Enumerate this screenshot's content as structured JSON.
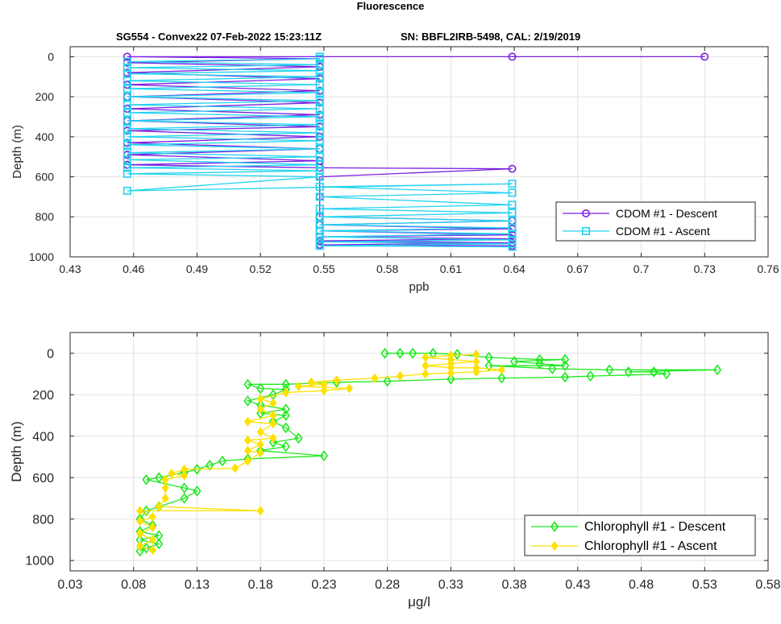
{
  "figure": {
    "title": "Fluorescence",
    "subtitle_left": "SG554 - Convex22 07-Feb-2022 15:23:11Z",
    "subtitle_right": "SN: BBFL2IRB-5498, CAL: 2/19/2019"
  },
  "chart_data": [
    {
      "type": "line",
      "xlabel": "ppb",
      "ylabel": "Depth (m)",
      "xlim": [
        0.43,
        0.76
      ],
      "ylim": [
        1000,
        -50
      ],
      "y_reversed": true,
      "xticks": [
        "0.43",
        "0.46",
        "0.49",
        "0.52",
        "0.55",
        "0.58",
        "0.61",
        "0.64",
        "0.67",
        "0.7",
        "0.73",
        "0.76"
      ],
      "yticks": [
        "0",
        "200",
        "400",
        "600",
        "800",
        "1000"
      ],
      "grid": true,
      "legend_position": "bottom-right",
      "series": [
        {
          "name": "CDOM #1 - Descent",
          "color": "#7b1fe0",
          "marker": "circle",
          "points": [
            [
              0.73,
              0
            ],
            [
              0.639,
              0
            ],
            [
              0.457,
              0
            ],
            [
              0.548,
              10
            ],
            [
              0.457,
              30
            ],
            [
              0.548,
              50
            ],
            [
              0.457,
              80
            ],
            [
              0.548,
              110
            ],
            [
              0.457,
              140
            ],
            [
              0.548,
              170
            ],
            [
              0.457,
              200
            ],
            [
              0.548,
              230
            ],
            [
              0.457,
              260
            ],
            [
              0.548,
              290
            ],
            [
              0.457,
              320
            ],
            [
              0.548,
              350
            ],
            [
              0.457,
              370
            ],
            [
              0.548,
              400
            ],
            [
              0.457,
              430
            ],
            [
              0.548,
              460
            ],
            [
              0.457,
              490
            ],
            [
              0.548,
              520
            ],
            [
              0.457,
              540
            ],
            [
              0.548,
              555
            ],
            [
              0.639,
              560
            ],
            [
              0.548,
              600
            ],
            [
              0.548,
              700
            ],
            [
              0.548,
              800
            ],
            [
              0.639,
              820
            ],
            [
              0.548,
              840
            ],
            [
              0.639,
              860
            ],
            [
              0.548,
              870
            ],
            [
              0.639,
              890
            ],
            [
              0.548,
              900
            ],
            [
              0.639,
              910
            ],
            [
              0.548,
              920
            ],
            [
              0.639,
              930
            ],
            [
              0.548,
              940
            ],
            [
              0.639,
              945
            ]
          ]
        },
        {
          "name": "CDOM #1 - Ascent",
          "color": "#22d3f0",
          "marker": "square",
          "points": [
            [
              0.639,
              950
            ],
            [
              0.548,
              945
            ],
            [
              0.639,
              935
            ],
            [
              0.548,
              925
            ],
            [
              0.639,
              915
            ],
            [
              0.548,
              900
            ],
            [
              0.639,
              885
            ],
            [
              0.548,
              870
            ],
            [
              0.639,
              855
            ],
            [
              0.548,
              840
            ],
            [
              0.639,
              820
            ],
            [
              0.548,
              800
            ],
            [
              0.639,
              780
            ],
            [
              0.548,
              760
            ],
            [
              0.639,
              740
            ],
            [
              0.548,
              700
            ],
            [
              0.639,
              680
            ],
            [
              0.548,
              650
            ],
            [
              0.639,
              635
            ],
            [
              0.457,
              670
            ],
            [
              0.548,
              600
            ],
            [
              0.457,
              585
            ],
            [
              0.548,
              570
            ],
            [
              0.457,
              555
            ],
            [
              0.548,
              540
            ],
            [
              0.457,
              515
            ],
            [
              0.548,
              500
            ],
            [
              0.457,
              480
            ],
            [
              0.548,
              460
            ],
            [
              0.457,
              440
            ],
            [
              0.548,
              420
            ],
            [
              0.457,
              400
            ],
            [
              0.548,
              380
            ],
            [
              0.457,
              360
            ],
            [
              0.548,
              340
            ],
            [
              0.457,
              320
            ],
            [
              0.548,
              300
            ],
            [
              0.457,
              280
            ],
            [
              0.548,
              260
            ],
            [
              0.457,
              240
            ],
            [
              0.548,
              220
            ],
            [
              0.457,
              200
            ],
            [
              0.548,
              180
            ],
            [
              0.457,
              160
            ],
            [
              0.548,
              140
            ],
            [
              0.457,
              120
            ],
            [
              0.548,
              100
            ],
            [
              0.457,
              85
            ],
            [
              0.548,
              70
            ],
            [
              0.457,
              55
            ],
            [
              0.548,
              40
            ],
            [
              0.457,
              25
            ],
            [
              0.548,
              10
            ],
            [
              0.548,
              0
            ]
          ]
        }
      ]
    },
    {
      "type": "line",
      "xlabel": "μg/l",
      "ylabel": "Depth (m)",
      "xlim": [
        0.03,
        0.58
      ],
      "ylim": [
        1050,
        -100
      ],
      "y_reversed": true,
      "xticks": [
        "0.03",
        "0.08",
        "0.13",
        "0.18",
        "0.23",
        "0.28",
        "0.33",
        "0.38",
        "0.43",
        "0.48",
        "0.53",
        "0.58"
      ],
      "yticks": [
        "0",
        "200",
        "400",
        "600",
        "800",
        "1000"
      ],
      "grid": true,
      "legend_position": "bottom-right",
      "series": [
        {
          "name": "Chlorophyll #1 - Descent",
          "color": "#1ee81e",
          "marker": "diamond",
          "points": [
            [
              0.278,
              0
            ],
            [
              0.29,
              0
            ],
            [
              0.3,
              0
            ],
            [
              0.316,
              0
            ],
            [
              0.335,
              5
            ],
            [
              0.36,
              20
            ],
            [
              0.4,
              30
            ],
            [
              0.42,
              30
            ],
            [
              0.38,
              40
            ],
            [
              0.4,
              50
            ],
            [
              0.42,
              60
            ],
            [
              0.36,
              60
            ],
            [
              0.41,
              75
            ],
            [
              0.455,
              80
            ],
            [
              0.54,
              80
            ],
            [
              0.47,
              90
            ],
            [
              0.49,
              90
            ],
            [
              0.5,
              100
            ],
            [
              0.44,
              110
            ],
            [
              0.42,
              115
            ],
            [
              0.37,
              120
            ],
            [
              0.33,
              125
            ],
            [
              0.28,
              135
            ],
            [
              0.24,
              140
            ],
            [
              0.2,
              150
            ],
            [
              0.17,
              150
            ],
            [
              0.18,
              170
            ],
            [
              0.2,
              175
            ],
            [
              0.19,
              200
            ],
            [
              0.17,
              230
            ],
            [
              0.18,
              250
            ],
            [
              0.2,
              270
            ],
            [
              0.18,
              290
            ],
            [
              0.2,
              300
            ],
            [
              0.19,
              330
            ],
            [
              0.2,
              360
            ],
            [
              0.21,
              410
            ],
            [
              0.19,
              430
            ],
            [
              0.2,
              450
            ],
            [
              0.18,
              470
            ],
            [
              0.23,
              495
            ],
            [
              0.17,
              510
            ],
            [
              0.15,
              520
            ],
            [
              0.14,
              540
            ],
            [
              0.13,
              560
            ],
            [
              0.12,
              575
            ],
            [
              0.1,
              600
            ],
            [
              0.09,
              610
            ],
            [
              0.12,
              650
            ],
            [
              0.13,
              665
            ],
            [
              0.12,
              700
            ],
            [
              0.1,
              740
            ],
            [
              0.09,
              760
            ],
            [
              0.085,
              800
            ],
            [
              0.095,
              830
            ],
            [
              0.085,
              860
            ],
            [
              0.1,
              880
            ],
            [
              0.085,
              900
            ],
            [
              0.1,
              920
            ],
            [
              0.09,
              940
            ],
            [
              0.085,
              955
            ]
          ]
        },
        {
          "name": "Chlorophyll #1 - Ascent",
          "color": "#ffe100",
          "marker": "filled-diamond",
          "points": [
            [
              0.095,
              950
            ],
            [
              0.085,
              930
            ],
            [
              0.095,
              900
            ],
            [
              0.085,
              870
            ],
            [
              0.095,
              840
            ],
            [
              0.085,
              810
            ],
            [
              0.095,
              790
            ],
            [
              0.085,
              760
            ],
            [
              0.18,
              760
            ],
            [
              0.1,
              740
            ],
            [
              0.105,
              700
            ],
            [
              0.105,
              650
            ],
            [
              0.105,
              610
            ],
            [
              0.12,
              590
            ],
            [
              0.11,
              580
            ],
            [
              0.12,
              560
            ],
            [
              0.16,
              555
            ],
            [
              0.17,
              520
            ],
            [
              0.18,
              480
            ],
            [
              0.17,
              470
            ],
            [
              0.18,
              440
            ],
            [
              0.17,
              420
            ],
            [
              0.19,
              410
            ],
            [
              0.18,
              380
            ],
            [
              0.19,
              340
            ],
            [
              0.17,
              330
            ],
            [
              0.19,
              300
            ],
            [
              0.18,
              270
            ],
            [
              0.19,
              240
            ],
            [
              0.18,
              220
            ],
            [
              0.2,
              190
            ],
            [
              0.23,
              180
            ],
            [
              0.25,
              170
            ],
            [
              0.21,
              160
            ],
            [
              0.23,
              150
            ],
            [
              0.22,
              140
            ],
            [
              0.24,
              130
            ],
            [
              0.27,
              120
            ],
            [
              0.29,
              110
            ],
            [
              0.31,
              100
            ],
            [
              0.33,
              95
            ],
            [
              0.35,
              90
            ],
            [
              0.37,
              80
            ],
            [
              0.35,
              70
            ],
            [
              0.33,
              70
            ],
            [
              0.31,
              60
            ],
            [
              0.33,
              50
            ],
            [
              0.35,
              40
            ],
            [
              0.33,
              30
            ],
            [
              0.31,
              20
            ],
            [
              0.33,
              10
            ],
            [
              0.35,
              5
            ]
          ]
        }
      ]
    }
  ]
}
